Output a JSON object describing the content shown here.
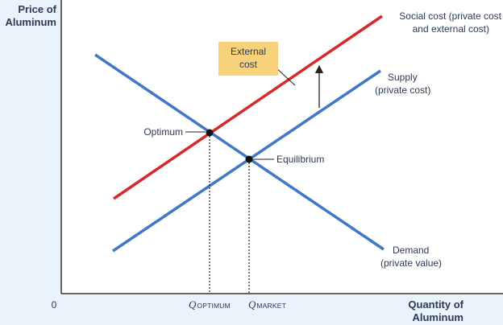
{
  "axes": {
    "y_title_line1": "Price of",
    "y_title_line2": "Aluminum",
    "x_title_line1": "Quantity of",
    "x_title_line2": "Aluminum",
    "origin": "0"
  },
  "curves": {
    "social_cost": {
      "label_line1": "Social cost (private cost",
      "label_line2": "and external cost)",
      "color": "#d42a2e"
    },
    "supply": {
      "label_line1": "Supply",
      "label_line2": "(private cost)",
      "color": "#3f78c4"
    },
    "demand": {
      "label_line1": "Demand",
      "label_line2": "(private value)",
      "color": "#3f78c4"
    }
  },
  "annotations": {
    "external_cost_line1": "External",
    "external_cost_line2": "cost",
    "external_cost_box_color": "#f8d27a",
    "optimum": "Optimum",
    "equilibrium": "Equilibrium"
  },
  "quantities": {
    "optimum_q": "Q",
    "optimum_sub": "OPTIMUM",
    "market_q": "Q",
    "market_sub": "MARKET"
  },
  "colors": {
    "background": "#eaf3fb",
    "plot_area": "#ffffff",
    "text": "#2b3a55"
  }
}
